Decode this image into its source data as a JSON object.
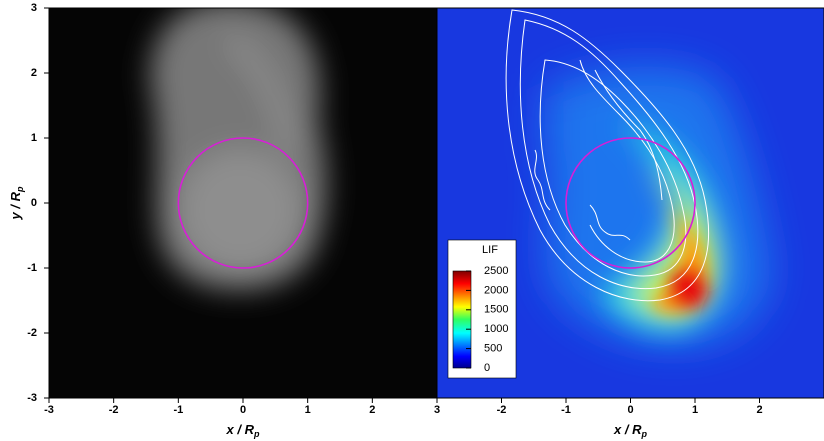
{
  "chart_data": [
    {
      "type": "image",
      "colormap": "gray",
      "xlabel": {
        "text": "x / R",
        "sub": "p"
      },
      "ylabel": {
        "text": "y / R",
        "sub": "p"
      },
      "xlim": [
        -3,
        3
      ],
      "ylim": [
        -3,
        3
      ],
      "xticks": [
        -3,
        -2,
        -1,
        0,
        1,
        2,
        3
      ],
      "yticks": [
        -3,
        -2,
        -1,
        0,
        1,
        2,
        3
      ],
      "circle": {
        "cx": 0,
        "cy": 0,
        "r": 1,
        "color": "#d81ed8"
      }
    },
    {
      "type": "image",
      "colormap": "jet",
      "xlabel": {
        "text": "x / R",
        "sub": "p"
      },
      "xlim": [
        -3,
        3
      ],
      "ylim": [
        -3,
        3
      ],
      "xticks": [
        -2,
        -1,
        0,
        1,
        2
      ],
      "circle": {
        "cx": 0,
        "cy": 0,
        "r": 1,
        "color": "#d81ed8"
      },
      "colorbar": {
        "title": "LIF",
        "lim": [
          0,
          2500
        ],
        "ticks": [
          0,
          500,
          1000,
          1500,
          2000,
          2500
        ]
      }
    }
  ]
}
